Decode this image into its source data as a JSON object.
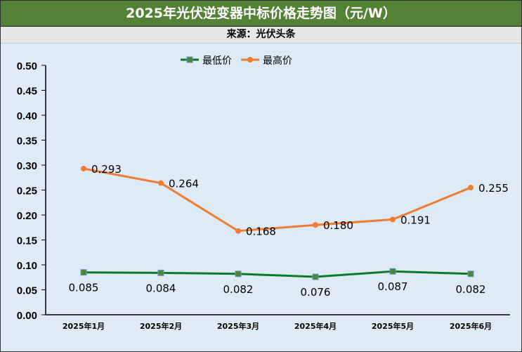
{
  "chart_data": {
    "type": "line",
    "title": "2025年光伏逆变器中标价格走势图（元/W）",
    "subtitle": "来源：光伏头条",
    "categories": [
      "2025年1月",
      "2025年2月",
      "2025年3月",
      "2025年4月",
      "2025年5月",
      "2025年6月"
    ],
    "series": [
      {
        "name": "最低价",
        "color": "#0e7a27",
        "marker_color": "#548235",
        "values": [
          0.085,
          0.084,
          0.082,
          0.076,
          0.087,
          0.082
        ],
        "labels": [
          "0.085",
          "0.084",
          "0.082",
          "0.076",
          "0.087",
          "0.082"
        ]
      },
      {
        "name": "最高价",
        "color": "#ed7d31",
        "marker_color": "#ed7d31",
        "values": [
          0.293,
          0.264,
          0.168,
          0.18,
          0.191,
          0.255
        ],
        "labels": [
          "0.293",
          "0.264",
          "0.168",
          "0.180",
          "0.191",
          "0.255"
        ]
      }
    ],
    "yticks": [
      "0.00",
      "0.05",
      "0.10",
      "0.15",
      "0.20",
      "0.25",
      "0.30",
      "0.35",
      "0.40",
      "0.45",
      "0.50"
    ],
    "ylim": [
      0,
      0.5
    ],
    "legend": "top-center"
  }
}
